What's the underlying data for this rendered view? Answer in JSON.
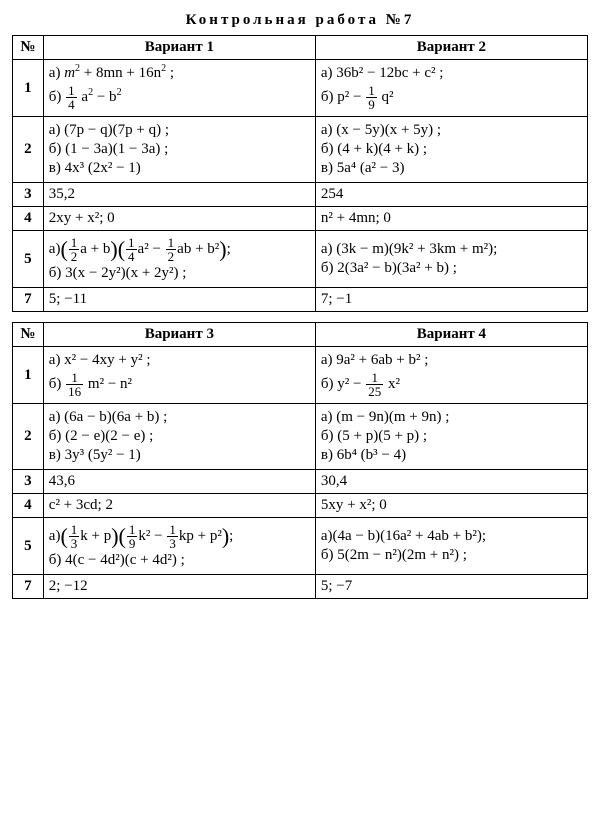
{
  "title": "Контрольная работа №7",
  "table_header": {
    "num": "№",
    "v1": "Вариант 1",
    "v2": "Вариант 2",
    "v3": "Вариант 3",
    "v4": "Вариант 4"
  },
  "top": {
    "r1": {
      "v1a_pre": "а)  ",
      "v1a_m": "m",
      "v1a_mid": " + 8mn + 16n",
      "v1a_end": " ;",
      "v1b_pre": "б)  ",
      "v1b_f_n": "1",
      "v1b_f_d": "4",
      "v1b_a": " a",
      "v1b_mid": " − b",
      "v2a": "а)  36b² − 12bc + c² ;",
      "v2b_pre": "б)  p² − ",
      "v2b_f_n": "1",
      "v2b_f_d": "9",
      "v2b_end": " q²"
    },
    "r2": {
      "v1a": "а)  (7p − q)(7p + q) ;",
      "v1b": "б)  (1 − 3a)(1 − 3a) ;",
      "v1c": "в)  4x³ (2x² − 1)",
      "v2a": "а)  (x − 5y)(x + 5y) ;",
      "v2b": "б)  (4 + k)(4 + k) ;",
      "v2c": "в)  5a⁴ (a² − 3)"
    },
    "r3": {
      "v1": "35,2",
      "v2": "254"
    },
    "r4": {
      "v1": "2xy + x²;  0",
      "v2": "n² + 4mn;  0"
    },
    "r5": {
      "v1a_pre": "а)",
      "v1a_p1_n": "1",
      "v1a_p1_d": "2",
      "v1a_p1_tail": "a + b",
      "v1a_p2_f1n": "1",
      "v1a_p2_f1d": "4",
      "v1a_p2_a": "a² − ",
      "v1a_p2_f2n": "1",
      "v1a_p2_f2d": "2",
      "v1a_p2_tail": "ab + b²",
      "v1a_end": ";",
      "v1b": "б)  3(x − 2y²)(x + 2y²) ;",
      "v2a": "а) (3k − m)(9k² + 3km + m²);",
      "v2b": "б)  2(3a² − b)(3a² + b) ;"
    },
    "r7": {
      "v1": "5;  −11",
      "v2": "7;  −1"
    }
  },
  "bottom": {
    "r1": {
      "v1a": "а)  x² − 4xy + y² ;",
      "v1b_pre": "б)  ",
      "v1b_f_n": "1",
      "v1b_f_d": "16",
      "v1b_end": " m² − n²",
      "v2a": "а)  9a² + 6ab + b² ;",
      "v2b_pre": "б)  y² − ",
      "v2b_f_n": "1",
      "v2b_f_d": "25",
      "v2b_end": " x²"
    },
    "r2": {
      "v1a": "а)  (6a − b)(6a + b) ;",
      "v1b": "б)  (2 − e)(2 − e) ;",
      "v1c": "в)  3y³ (5y² − 1)",
      "v2a": "а)  (m − 9n)(m + 9n) ;",
      "v2b": "б)  (5 + p)(5 + p) ;",
      "v2c": "в)  6b⁴ (b³ − 4)"
    },
    "r3": {
      "v1": "43,6",
      "v2": "30,4"
    },
    "r4": {
      "v1": "c² + 3cd;  2",
      "v2": "5xy + x²;  0"
    },
    "r5": {
      "v1a_pre": "а)",
      "v1a_p1_n": "1",
      "v1a_p1_d": "3",
      "v1a_p1_tail": "k + p",
      "v1a_p2_f1n": "1",
      "v1a_p2_f1d": "9",
      "v1a_p2_a": "k² − ",
      "v1a_p2_f2n": "1",
      "v1a_p2_f2d": "3",
      "v1a_p2_tail": "kp + p²",
      "v1a_end": ";",
      "v1b": "б)  4(c − 4d²)(c + 4d²) ;",
      "v2a": "а)(4a − b)(16a² + 4ab + b²);",
      "v2b": "б)  5(2m − n²)(2m + n²) ;"
    },
    "r7": {
      "v1": "2;  −12",
      "v2": "5;  −7"
    }
  },
  "nums": {
    "n1": "1",
    "n2": "2",
    "n3": "3",
    "n4": "4",
    "n5": "5",
    "n7": "7"
  }
}
